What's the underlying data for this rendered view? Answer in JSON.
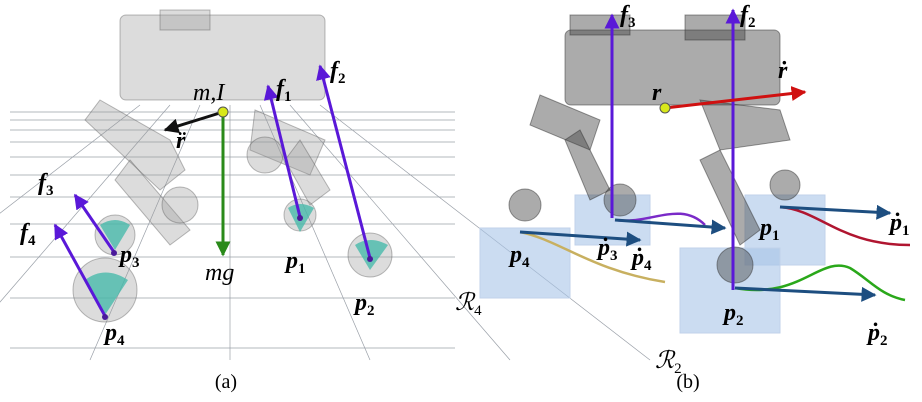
{
  "figure": {
    "panel_a": {
      "caption": "(a)",
      "labels": {
        "mass_inertia": {
          "text": "m,I"
        },
        "acc": {
          "text": "r̈"
        },
        "gravity": {
          "text": "mg"
        },
        "f1": {
          "text": "f",
          "sub": "1"
        },
        "f2": {
          "text": "f",
          "sub": "2"
        },
        "f3": {
          "text": "f",
          "sub": "3"
        },
        "f4": {
          "text": "f",
          "sub": "4"
        },
        "p1": {
          "text": "p",
          "sub": "1"
        },
        "p2": {
          "text": "p",
          "sub": "2"
        },
        "p3": {
          "text": "p",
          "sub": "3"
        },
        "p4": {
          "text": "p",
          "sub": "4"
        }
      }
    },
    "panel_b": {
      "caption": "(b)",
      "labels": {
        "f2": {
          "text": "f",
          "sub": "2"
        },
        "f3": {
          "text": "f",
          "sub": "3"
        },
        "r": {
          "text": "r"
        },
        "rdot": {
          "text": "ṙ"
        },
        "p1": {
          "text": "p",
          "sub": "1"
        },
        "p2": {
          "text": "p",
          "sub": "2"
        },
        "p4": {
          "text": "p",
          "sub": "4"
        },
        "pdot1": {
          "text": "ṗ",
          "sub": "1"
        },
        "pdot2": {
          "text": "ṗ",
          "sub": "2"
        },
        "pdot3": {
          "text": "ṗ",
          "sub": "3"
        },
        "pdot4": {
          "text": "ṗ",
          "sub": "4"
        },
        "R2": {
          "text": "ℛ",
          "sub": "2"
        },
        "R4": {
          "text": "ℛ",
          "sub": "4"
        }
      }
    }
  }
}
